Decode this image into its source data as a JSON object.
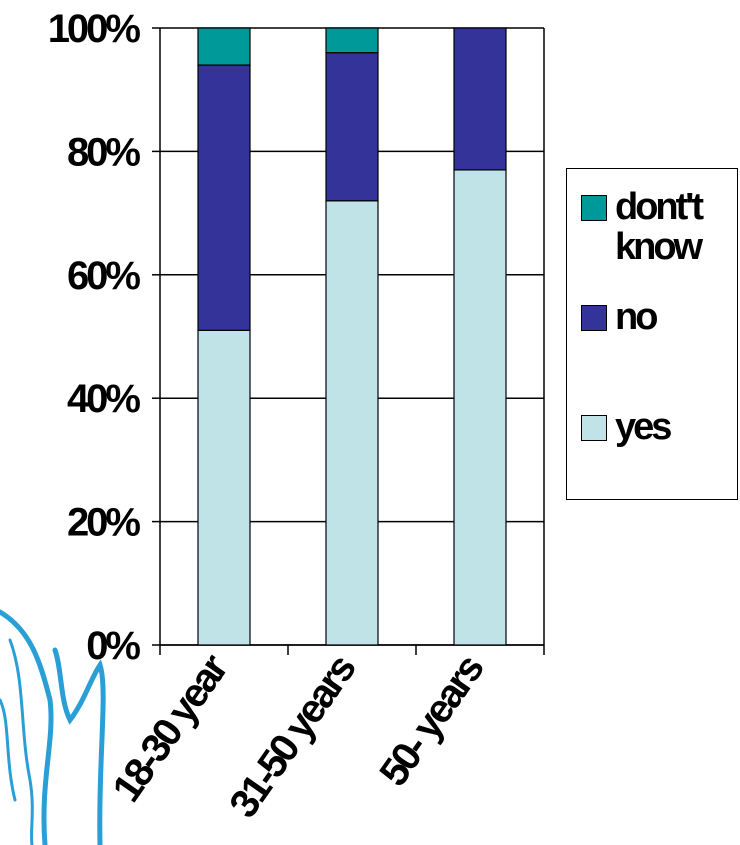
{
  "chart_data": {
    "type": "stacked-bar",
    "categories": [
      "18-30 year",
      "31-50 years",
      "50- years"
    ],
    "series": [
      {
        "name": "dont't know",
        "color": "#009999",
        "values": [
          6,
          4,
          0
        ]
      },
      {
        "name": "no",
        "color": "#333399",
        "values": [
          43,
          24,
          23
        ]
      },
      {
        "name": "yes",
        "color": "#bfe3e6",
        "values": [
          51,
          72,
          77
        ]
      }
    ],
    "ylim": [
      0,
      100
    ],
    "yticks": [
      {
        "value": 0,
        "label": "0%"
      },
      {
        "value": 20,
        "label": "20%"
      },
      {
        "value": 40,
        "label": "40%"
      },
      {
        "value": 60,
        "label": "60%"
      },
      {
        "value": 80,
        "label": "80%"
      },
      {
        "value": 100,
        "label": "100%"
      }
    ],
    "grid": true,
    "legend": "right"
  }
}
